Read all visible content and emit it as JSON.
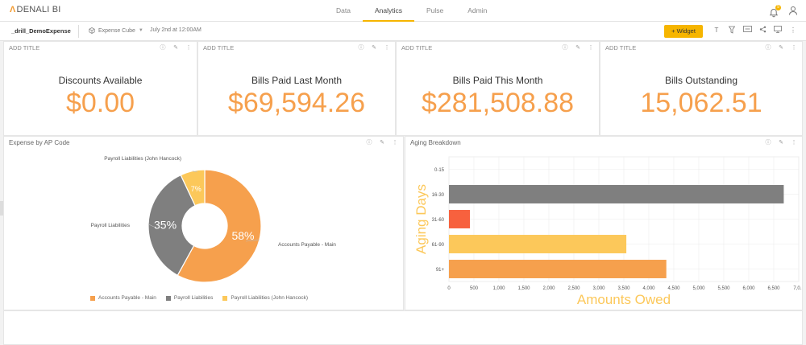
{
  "app": {
    "logo_text": "DENALI BI"
  },
  "nav": {
    "tabs": [
      {
        "label": "Data",
        "active": false
      },
      {
        "label": "Analytics",
        "active": true
      },
      {
        "label": "Pulse",
        "active": false
      },
      {
        "label": "Admin",
        "active": false
      }
    ]
  },
  "header": {
    "notification_count": "9"
  },
  "toolbar": {
    "dashboard_name": "_drill_DemoExpense",
    "cube": "Expense Cube",
    "date": "July 2nd at 12:00AM",
    "widget_label": "Widget"
  },
  "kpis": [
    {
      "header": "ADD TITLE",
      "label": "Discounts Available",
      "value": "$0.00"
    },
    {
      "header": "ADD TITLE",
      "label": "Bills Paid Last Month",
      "value": "$69,594.26"
    },
    {
      "header": "ADD TITLE",
      "label": "Bills Paid This Month",
      "value": "$281,508.88"
    },
    {
      "header": "ADD TITLE",
      "label": "Bills Outstanding",
      "value": "15,062.51"
    }
  ],
  "chart_data": [
    {
      "type": "pie",
      "title": "Expense by AP Code",
      "categories": [
        "Accounts Payable - Main",
        "Payroll Liabilities",
        "Payroll Liabilities (John Hancock)"
      ],
      "values": [
        58,
        35,
        7
      ],
      "data_labels": [
        "58%",
        "35%",
        "7%"
      ],
      "colors": [
        "#f6a04d",
        "#7f7f7f",
        "#fcc85a"
      ],
      "legend": "bottom"
    },
    {
      "type": "bar",
      "orientation": "horizontal",
      "title": "Aging Breakdown",
      "xlabel": "Amounts Owed",
      "ylabel": "Aging Days",
      "categories": [
        "0-15",
        "16-30",
        "31-60",
        "61-90",
        "91+"
      ],
      "values": [
        0,
        6700,
        420,
        3550,
        4350
      ],
      "colors": [
        "#f6a04d",
        "#7f7f7f",
        "#f7613e",
        "#fcc85a",
        "#f6a04d"
      ],
      "xlim": [
        0,
        7000
      ],
      "x_ticks": [
        "0",
        "500",
        "1,000",
        "1,500",
        "2,000",
        "2,500",
        "3,000",
        "3,500",
        "4,000",
        "4,500",
        "5,000",
        "5,500",
        "6,000",
        "6,500",
        "7,0..."
      ],
      "grid": true
    }
  ]
}
